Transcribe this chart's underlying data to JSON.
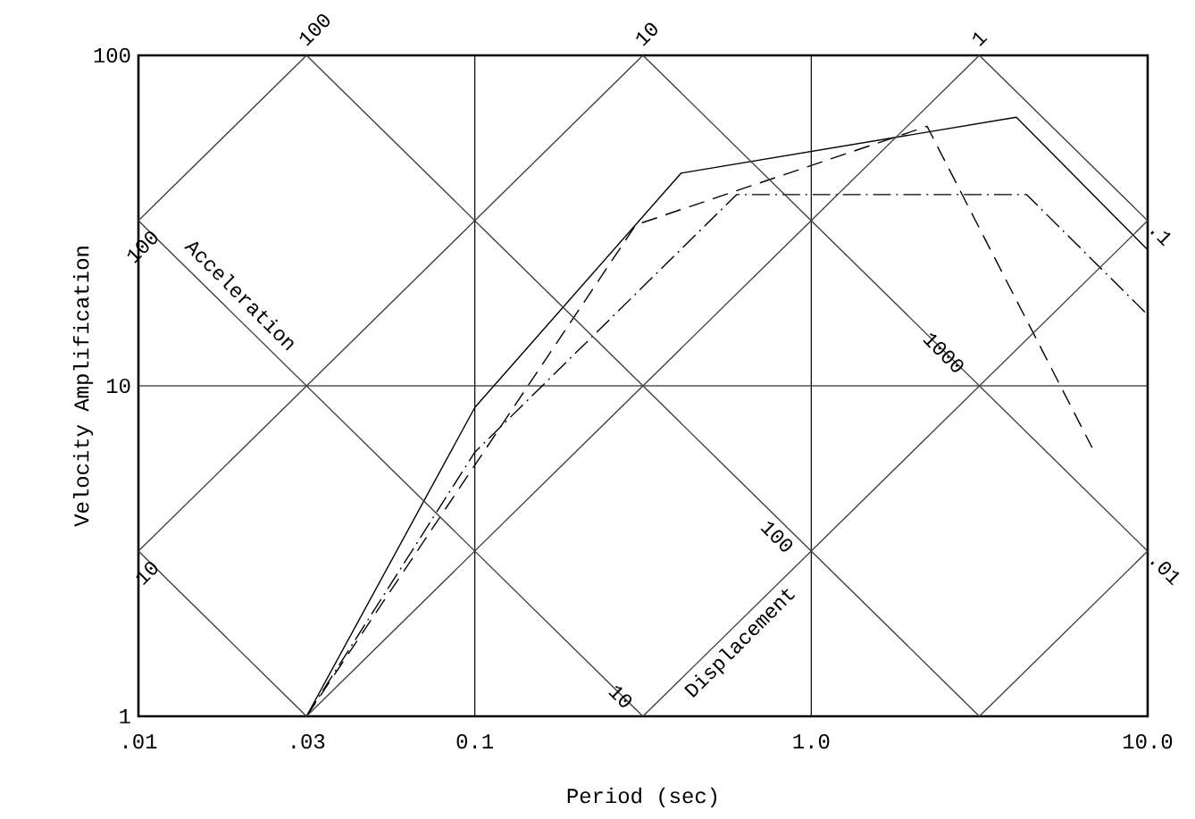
{
  "chart_data": {
    "type": "line",
    "xlabel": "Period (sec)",
    "ylabel": "Velocity Amplification",
    "log": "xy",
    "xlim": [
      0.01,
      10
    ],
    "ylim": [
      1,
      100
    ],
    "xticks": [
      {
        "value": 0.01,
        "label": ".01"
      },
      {
        "value": 0.0316,
        "label": ".03"
      },
      {
        "value": 0.1,
        "label": "0.1"
      },
      {
        "value": 1,
        "label": "1.0"
      },
      {
        "value": 10,
        "label": "10.0"
      }
    ],
    "yticks": [
      1,
      10,
      100
    ],
    "series": [
      {
        "color": "#000000",
        "line_style": "solid",
        "x": [
          0.0316,
          0.1,
          0.41,
          4.07,
          10
        ],
        "values": [
          1,
          8.6,
          44,
          65,
          25.8
        ]
      },
      {
        "color": "#000000",
        "line_style": "dashed",
        "x": [
          0.0316,
          0.301,
          2.21,
          6.84
        ],
        "values": [
          1,
          30.7,
          61,
          6.5
        ]
      },
      {
        "color": "#000000",
        "line_style": "dashdot",
        "x": [
          0.0316,
          0.1,
          0.6,
          4.37,
          10
        ],
        "values": [
          1,
          6.3,
          37.9,
          37.9,
          16.4
        ]
      },
      {
        "color": "#404040",
        "line_style": "solid",
        "x": [
          0.01,
          0.0316
        ],
        "values": [
          31.6,
          100
        ]
      },
      {
        "color": "#404040",
        "line_style": "solid",
        "x": [
          0.01,
          0.316
        ],
        "values": [
          3.16,
          100
        ]
      },
      {
        "color": "#404040",
        "line_style": "solid",
        "x": [
          0.0316,
          3.16
        ],
        "values": [
          1,
          100
        ]
      },
      {
        "color": "#404040",
        "line_style": "solid",
        "x": [
          0.316,
          10
        ],
        "values": [
          1,
          31.6
        ]
      },
      {
        "color": "#404040",
        "line_style": "solid",
        "x": [
          3.16,
          10
        ],
        "values": [
          1,
          3.16
        ]
      },
      {
        "color": "#404040",
        "line_style": "solid",
        "x": [
          0.01,
          0.0316
        ],
        "values": [
          3.16,
          1
        ]
      },
      {
        "color": "#404040",
        "line_style": "solid",
        "x": [
          0.01,
          0.316
        ],
        "values": [
          31.6,
          1
        ]
      },
      {
        "color": "#404040",
        "line_style": "solid",
        "x": [
          0.0316,
          3.16
        ],
        "values": [
          100,
          1
        ]
      },
      {
        "color": "#404040",
        "line_style": "solid",
        "x": [
          0.316,
          10
        ],
        "values": [
          100,
          3.16
        ]
      },
      {
        "color": "#404040",
        "line_style": "solid",
        "x": [
          3.16,
          10
        ],
        "values": [
          100,
          31.6
        ]
      }
    ],
    "ref_lines": [
      {
        "axis": "x",
        "value": 0.1
      },
      {
        "axis": "x",
        "value": 1
      },
      {
        "axis": "y",
        "value": 10
      }
    ],
    "annotations": [
      {
        "text": "100",
        "x": 0.0316,
        "y": 100
      },
      {
        "text": "10",
        "x": 0.316,
        "y": 100
      },
      {
        "text": "1",
        "x": 3.16,
        "y": 100
      },
      "100",
      "10",
      {
        "text": ".1",
        "x": 10,
        "y": 31.6
      },
      {
        "text": ".01",
        "x": 10,
        "y": 3.16
      },
      {
        "text": "1000",
        "x": 2.48,
        "y": 12.6
      },
      "100",
      "10",
      "Acceleration",
      "Displacement"
    ]
  }
}
